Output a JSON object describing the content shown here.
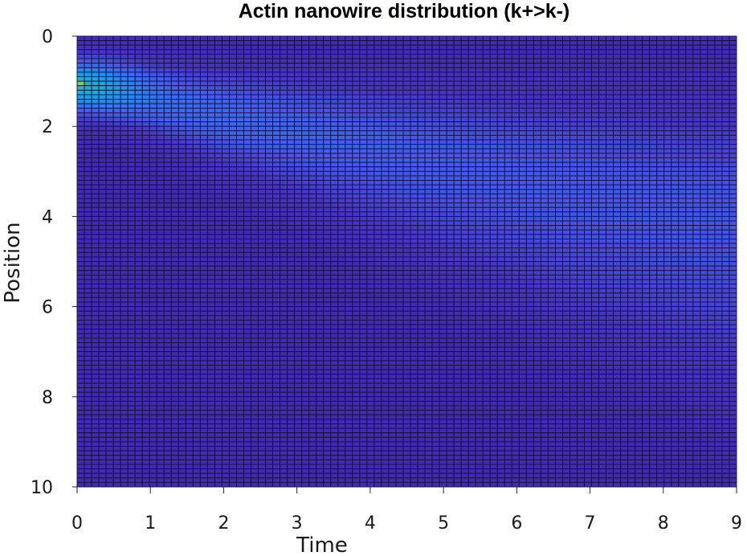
{
  "chart_data": {
    "type": "heatmap",
    "title": "Actin nanowire distribution (k+>k-)",
    "xlabel": "Time",
    "ylabel": "Position",
    "xlim": [
      0,
      9
    ],
    "ylim": [
      0,
      10
    ],
    "y_reversed": true,
    "x_ticks": [
      "0",
      "1",
      "2",
      "3",
      "4",
      "5",
      "6",
      "7",
      "8",
      "9"
    ],
    "y_ticks": [
      "0",
      "2",
      "4",
      "6",
      "8",
      "10"
    ],
    "grid_cols": 91,
    "grid_rows": 100,
    "colormap": "parula",
    "colors": {
      "low": "#3e1e8e",
      "mid": "#2a6fe8",
      "high": "#f9fb0e",
      "edge": "#1a0f3a"
    },
    "features": {
      "peak": {
        "time": 0.0,
        "position": 1.05,
        "value": 1.0
      },
      "upper_ridge": {
        "start": [
          0.0,
          1.05
        ],
        "end": [
          9.0,
          3.6
        ],
        "value": 0.13
      },
      "lower_ridge": {
        "start": [
          0.0,
          1.05
        ],
        "end": [
          9.0,
          6.3
        ],
        "value": 0.08
      },
      "background_value": 0.03
    }
  }
}
